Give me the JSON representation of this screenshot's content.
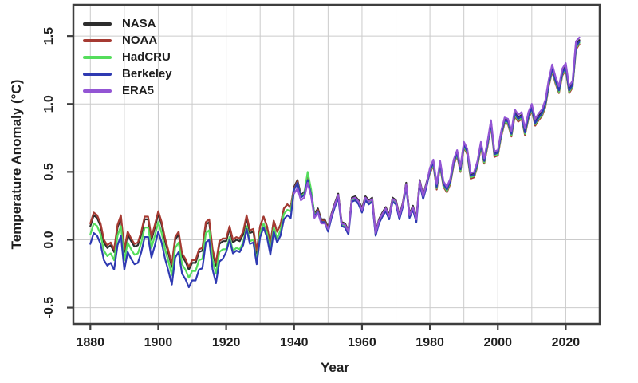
{
  "figure": {
    "background": "#ffffff",
    "colors": {
      "grid": "#cbcbcb",
      "border": "#3e3e3e",
      "tick": "#3e3e3e",
      "text": "#1f1f1f"
    },
    "x_grid": {
      "start": 1880,
      "end": 2030,
      "step": 10
    }
  },
  "chart_data": {
    "type": "line",
    "title": "",
    "xlabel": "Year",
    "ylabel": "Temperature Anomaly (°C)",
    "xlim": [
      1875,
      2030
    ],
    "ylim": [
      -0.62,
      1.73
    ],
    "grid": true,
    "legend_position": "top-left",
    "x_ticks": [
      "1880",
      "1900",
      "1920",
      "1940",
      "1960",
      "1980",
      "2000",
      "2020"
    ],
    "y_ticks": [
      "-0.5",
      "0.0",
      "0.5",
      "1.0",
      "1.5"
    ],
    "series": [
      {
        "name": "NASA",
        "color": "#2d2d2d",
        "start_year": 1880,
        "values": [
          0.1,
          0.18,
          0.16,
          0.1,
          -0.02,
          -0.06,
          -0.04,
          -0.09,
          0.09,
          0.16,
          -0.09,
          0.04,
          -0.01,
          -0.05,
          -0.04,
          0.04,
          0.15,
          0.15,
          0.0,
          0.09,
          0.19,
          0.11,
          -0.01,
          -0.1,
          -0.2,
          0.0,
          0.04,
          -0.12,
          -0.16,
          -0.22,
          -0.17,
          -0.17,
          -0.09,
          -0.08,
          0.11,
          0.13,
          -0.09,
          -0.19,
          -0.03,
          -0.01,
          -0.01,
          0.08,
          -0.02,
          0.0,
          -0.01,
          0.04,
          0.16,
          0.05,
          0.06,
          -0.1,
          0.1,
          0.17,
          0.1,
          -0.03,
          0.14,
          0.06,
          0.11,
          0.23,
          0.26,
          0.24,
          0.39,
          0.44,
          0.33,
          0.35,
          0.46,
          0.35,
          0.19,
          0.23,
          0.15,
          0.15,
          0.09,
          0.19,
          0.27,
          0.34,
          0.13,
          0.12,
          0.07,
          0.31,
          0.32,
          0.29,
          0.23,
          0.32,
          0.29,
          0.31,
          0.06,
          0.15,
          0.2,
          0.24,
          0.18,
          0.31,
          0.29,
          0.18,
          0.27,
          0.42,
          0.19,
          0.25,
          0.16,
          0.44,
          0.33,
          0.42,
          0.52,
          0.58,
          0.4,
          0.57,
          0.42,
          0.38,
          0.44,
          0.58,
          0.65,
          0.53,
          0.71,
          0.66,
          0.48,
          0.49,
          0.57,
          0.71,
          0.59,
          0.72,
          0.87,
          0.64,
          0.65,
          0.79,
          0.89,
          0.88,
          0.79,
          0.94,
          0.9,
          0.92,
          0.8,
          0.92,
          0.98,
          0.87,
          0.91,
          0.94,
          1.01,
          1.16,
          1.27,
          1.18,
          1.11,
          1.24,
          1.28,
          1.11,
          1.15,
          1.43,
          1.47
        ]
      },
      {
        "name": "NOAA",
        "color": "#a63a32",
        "start_year": 1880,
        "values": [
          0.12,
          0.2,
          0.18,
          0.12,
          0.0,
          -0.04,
          -0.02,
          -0.07,
          0.11,
          0.18,
          -0.07,
          0.06,
          0.01,
          -0.03,
          -0.02,
          0.06,
          0.17,
          0.17,
          0.02,
          0.11,
          0.21,
          0.13,
          0.01,
          -0.08,
          -0.18,
          0.02,
          0.06,
          -0.1,
          -0.14,
          -0.2,
          -0.15,
          -0.15,
          -0.07,
          -0.06,
          0.13,
          0.15,
          -0.07,
          -0.17,
          -0.01,
          0.01,
          0.01,
          0.1,
          0.0,
          0.02,
          0.01,
          0.06,
          0.18,
          0.07,
          0.08,
          -0.08,
          0.1,
          0.17,
          0.1,
          -0.03,
          0.14,
          0.06,
          0.11,
          0.23,
          0.26,
          0.24,
          0.38,
          0.43,
          0.32,
          0.34,
          0.45,
          0.34,
          0.18,
          0.22,
          0.14,
          0.14,
          0.08,
          0.18,
          0.26,
          0.33,
          0.12,
          0.11,
          0.06,
          0.3,
          0.31,
          0.28,
          0.22,
          0.31,
          0.28,
          0.3,
          0.05,
          0.14,
          0.19,
          0.23,
          0.17,
          0.3,
          0.28,
          0.17,
          0.26,
          0.41,
          0.18,
          0.24,
          0.15,
          0.43,
          0.32,
          0.41,
          0.49,
          0.55,
          0.37,
          0.54,
          0.39,
          0.35,
          0.41,
          0.55,
          0.62,
          0.5,
          0.68,
          0.63,
          0.45,
          0.46,
          0.54,
          0.68,
          0.56,
          0.69,
          0.84,
          0.61,
          0.62,
          0.76,
          0.86,
          0.85,
          0.76,
          0.91,
          0.87,
          0.89,
          0.77,
          0.89,
          0.95,
          0.84,
          0.88,
          0.91,
          0.98,
          1.13,
          1.24,
          1.15,
          1.08,
          1.21,
          1.25,
          1.08,
          1.12,
          1.4,
          1.44
        ]
      },
      {
        "name": "HadCRU",
        "color": "#55dd5c",
        "start_year": 1880,
        "values": [
          0.04,
          0.12,
          0.1,
          0.04,
          -0.08,
          -0.12,
          -0.1,
          -0.15,
          0.03,
          0.1,
          -0.15,
          -0.02,
          -0.07,
          -0.11,
          -0.1,
          -0.02,
          0.09,
          0.09,
          -0.06,
          0.03,
          0.13,
          0.05,
          -0.07,
          -0.16,
          -0.26,
          -0.06,
          -0.02,
          -0.18,
          -0.22,
          -0.28,
          -0.23,
          -0.23,
          -0.15,
          -0.14,
          0.05,
          0.07,
          -0.15,
          -0.25,
          -0.09,
          -0.07,
          -0.07,
          0.02,
          -0.08,
          -0.06,
          -0.07,
          -0.02,
          0.1,
          -0.01,
          0.0,
          -0.16,
          0.05,
          0.12,
          0.05,
          -0.08,
          0.09,
          0.01,
          0.07,
          0.19,
          0.22,
          0.21,
          0.37,
          0.42,
          0.32,
          0.34,
          0.5,
          0.37,
          0.18,
          0.21,
          0.13,
          0.13,
          0.07,
          0.17,
          0.25,
          0.32,
          0.11,
          0.1,
          0.05,
          0.29,
          0.3,
          0.27,
          0.21,
          0.3,
          0.27,
          0.29,
          0.04,
          0.13,
          0.18,
          0.22,
          0.16,
          0.29,
          0.27,
          0.16,
          0.25,
          0.4,
          0.17,
          0.23,
          0.14,
          0.42,
          0.31,
          0.4,
          0.5,
          0.56,
          0.38,
          0.55,
          0.4,
          0.36,
          0.42,
          0.56,
          0.63,
          0.51,
          0.69,
          0.64,
          0.46,
          0.47,
          0.55,
          0.69,
          0.57,
          0.7,
          0.85,
          0.62,
          0.63,
          0.77,
          0.87,
          0.86,
          0.77,
          0.92,
          0.88,
          0.9,
          0.78,
          0.9,
          0.96,
          0.85,
          0.89,
          0.92,
          0.99,
          1.14,
          1.25,
          1.16,
          1.09,
          1.22,
          1.26,
          1.09,
          1.13,
          1.41,
          1.45
        ]
      },
      {
        "name": "Berkeley",
        "color": "#2f3ab2",
        "start_year": 1880,
        "values": [
          -0.03,
          0.05,
          0.03,
          -0.03,
          -0.15,
          -0.19,
          -0.17,
          -0.22,
          -0.04,
          0.03,
          -0.22,
          -0.09,
          -0.14,
          -0.18,
          -0.17,
          -0.09,
          0.02,
          0.02,
          -0.13,
          -0.04,
          0.06,
          -0.02,
          -0.14,
          -0.23,
          -0.33,
          -0.13,
          -0.09,
          -0.25,
          -0.29,
          -0.35,
          -0.3,
          -0.3,
          -0.22,
          -0.21,
          -0.02,
          0.0,
          -0.22,
          -0.32,
          -0.16,
          -0.14,
          -0.09,
          0.0,
          -0.1,
          -0.08,
          -0.09,
          -0.04,
          0.08,
          -0.03,
          -0.02,
          -0.18,
          0.02,
          0.09,
          0.02,
          -0.11,
          0.06,
          -0.02,
          0.03,
          0.15,
          0.18,
          0.16,
          0.37,
          0.42,
          0.31,
          0.33,
          0.44,
          0.33,
          0.17,
          0.21,
          0.13,
          0.13,
          0.06,
          0.16,
          0.24,
          0.31,
          0.1,
          0.09,
          0.04,
          0.28,
          0.29,
          0.26,
          0.2,
          0.29,
          0.26,
          0.28,
          0.03,
          0.12,
          0.17,
          0.21,
          0.15,
          0.28,
          0.26,
          0.15,
          0.24,
          0.39,
          0.16,
          0.22,
          0.13,
          0.41,
          0.3,
          0.39,
          0.51,
          0.57,
          0.39,
          0.56,
          0.41,
          0.37,
          0.43,
          0.57,
          0.64,
          0.52,
          0.7,
          0.65,
          0.47,
          0.48,
          0.56,
          0.7,
          0.58,
          0.71,
          0.86,
          0.63,
          0.64,
          0.78,
          0.88,
          0.87,
          0.78,
          0.93,
          0.89,
          0.91,
          0.79,
          0.91,
          0.97,
          0.86,
          0.9,
          0.93,
          1.0,
          1.15,
          1.26,
          1.17,
          1.1,
          1.23,
          1.27,
          1.1,
          1.14,
          1.42,
          1.46
        ]
      },
      {
        "name": "ERA5",
        "color": "#9355d4",
        "start_year": 1940,
        "values": [
          0.34,
          0.38,
          0.29,
          0.31,
          0.42,
          0.32,
          0.16,
          0.2,
          0.12,
          0.12,
          0.08,
          0.18,
          0.26,
          0.33,
          0.12,
          0.11,
          0.06,
          0.3,
          0.31,
          0.28,
          0.22,
          0.31,
          0.28,
          0.3,
          0.05,
          0.14,
          0.19,
          0.23,
          0.17,
          0.3,
          0.28,
          0.17,
          0.26,
          0.41,
          0.18,
          0.24,
          0.15,
          0.43,
          0.32,
          0.41,
          0.53,
          0.59,
          0.41,
          0.58,
          0.43,
          0.39,
          0.45,
          0.59,
          0.66,
          0.54,
          0.72,
          0.67,
          0.49,
          0.5,
          0.58,
          0.72,
          0.6,
          0.73,
          0.88,
          0.65,
          0.66,
          0.8,
          0.9,
          0.89,
          0.8,
          0.96,
          0.92,
          0.94,
          0.82,
          0.94,
          1.0,
          0.89,
          0.93,
          0.96,
          1.03,
          1.18,
          1.29,
          1.2,
          1.13,
          1.26,
          1.3,
          1.13,
          1.17,
          1.46,
          1.49
        ]
      }
    ]
  }
}
